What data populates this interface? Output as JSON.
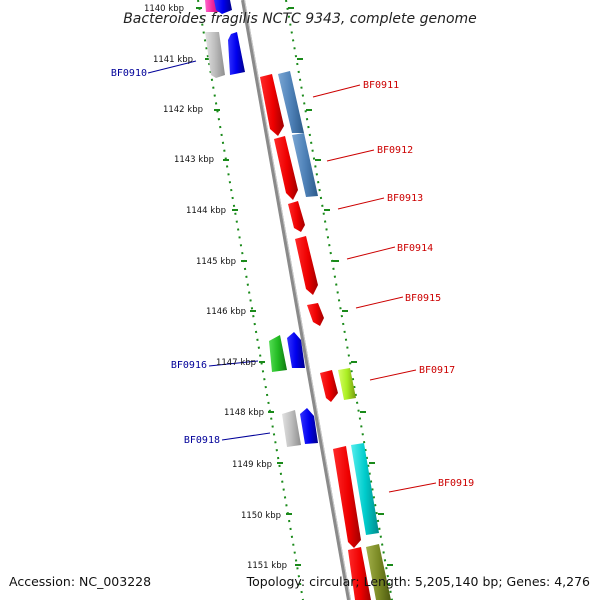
{
  "title": "Bacteroides fragilis NCTC 9343, complete genome",
  "footer": {
    "accession": "Accession: NC_003228",
    "summary": "Topology: circular; Length: 5,205,140 bp; Genes: 4,276"
  },
  "colors": {
    "forward_label": "#cc0000",
    "reverse_label": "#000099",
    "tick_dots": "#1a8a1a",
    "backbone": "#888888"
  },
  "ticks": [
    "1140 kbp",
    "1141 kbp",
    "1142 kbp",
    "1143 kbp",
    "1144 kbp",
    "1145 kbp",
    "1146 kbp",
    "1147 kbp",
    "1148 kbp",
    "1149 kbp",
    "1150 kbp",
    "1151 kbp"
  ],
  "gene_labels": [
    {
      "name": "BF0910",
      "strand": "reverse"
    },
    {
      "name": "BF0911",
      "strand": "forward"
    },
    {
      "name": "BF0912",
      "strand": "forward"
    },
    {
      "name": "BF0913",
      "strand": "forward"
    },
    {
      "name": "BF0914",
      "strand": "forward"
    },
    {
      "name": "BF0915",
      "strand": "forward"
    },
    {
      "name": "BF0916",
      "strand": "reverse"
    },
    {
      "name": "BF0917",
      "strand": "forward"
    },
    {
      "name": "BF0918",
      "strand": "reverse"
    },
    {
      "name": "BF0919",
      "strand": "forward"
    }
  ]
}
